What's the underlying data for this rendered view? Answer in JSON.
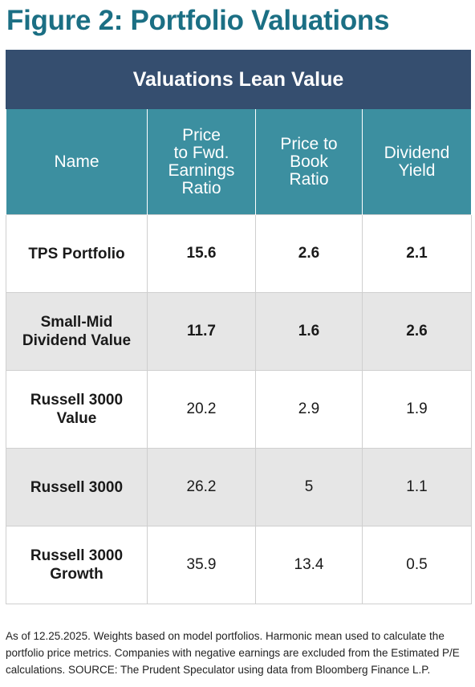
{
  "title": "Figure 2: Portfolio Valuations",
  "banner": "Valuations Lean Value",
  "headers": {
    "name": "Name",
    "pe": [
      "Price",
      "to Fwd.",
      "Earnings",
      "Ratio"
    ],
    "pb": [
      "Price to",
      "Book",
      "Ratio"
    ],
    "dy": [
      "Dividend",
      "Yield"
    ]
  },
  "rows": [
    {
      "name": [
        "TPS Portfolio"
      ],
      "pe": "15.6",
      "pb": "2.6",
      "dy": "2.1"
    },
    {
      "name": [
        "Small-Mid",
        "Dividend Value"
      ],
      "pe": "11.7",
      "pb": "1.6",
      "dy": "2.6"
    },
    {
      "name": [
        "Russell 3000",
        "Value"
      ],
      "pe": "20.2",
      "pb": "2.9",
      "dy": "1.9"
    },
    {
      "name": [
        "Russell 3000"
      ],
      "pe": "26.2",
      "pb": "5",
      "dy": "1.1"
    },
    {
      "name": [
        "Russell 3000",
        "Growth"
      ],
      "pe": "35.9",
      "pb": "13.4",
      "dy": "0.5"
    }
  ],
  "footnote": "As of 12.25.2025. Weights based on model portfolios. Harmonic mean used to calculate the portfolio price metrics. Companies with negative earnings are excluded from the Estimated P/E calculations. SOURCE: The Prudent Speculator using data from Bloomberg Finance L.P."
}
